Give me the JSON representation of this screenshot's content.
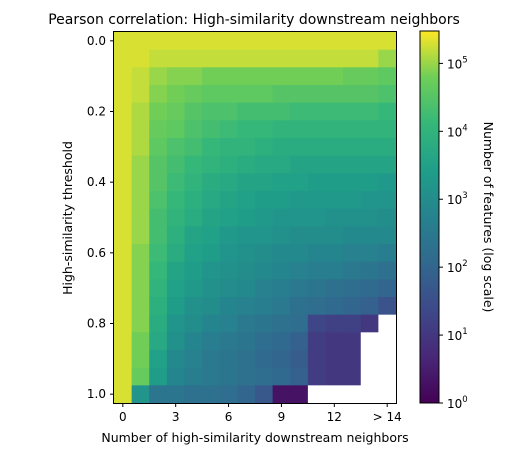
{
  "chart_data": {
    "type": "heatmap",
    "title": "Pearson correlation: High-similarity downstream neighbors",
    "xlabel": "Number of high-similarity downstream neighbors",
    "ylabel": "High-similarity threshold",
    "x_tick_labels": [
      "0",
      "3",
      "6",
      "9",
      "12",
      "> 14"
    ],
    "x_tick_values": [
      0,
      3,
      6,
      9,
      12,
      15
    ],
    "x_categories": [
      0,
      1,
      2,
      3,
      4,
      5,
      6,
      7,
      8,
      9,
      10,
      11,
      12,
      13,
      14,
      "> 14"
    ],
    "y_tick_labels": [
      "0.0",
      "0.2",
      "0.4",
      "0.6",
      "0.8",
      "1.0"
    ],
    "y_tick_values": [
      0.0,
      0.2,
      0.4,
      0.6,
      0.8,
      1.0
    ],
    "y_values": [
      0.0,
      0.05,
      0.1,
      0.15,
      0.2,
      0.25,
      0.3,
      0.35,
      0.4,
      0.45,
      0.5,
      0.55,
      0.6,
      0.65,
      0.7,
      0.75,
      0.8,
      0.85,
      0.9,
      0.95,
      1.0
    ],
    "xlim": [
      -0.5,
      15.5
    ],
    "ylim": [
      1.025,
      -0.025
    ],
    "color_scale": "viridis",
    "log_scale": true,
    "missing_color": "#ffffff",
    "colorbar": {
      "label": "Number of features (log scale)",
      "range": [
        1,
        300000
      ],
      "ticks": [
        {
          "value": 1,
          "base": "10",
          "exp": "0"
        },
        {
          "value": 10,
          "base": "10",
          "exp": "1"
        },
        {
          "value": 100,
          "base": "10",
          "exp": "2"
        },
        {
          "value": 1000,
          "base": "10",
          "exp": "3"
        },
        {
          "value": 10000,
          "base": "10",
          "exp": "4"
        },
        {
          "value": 100000,
          "base": "10",
          "exp": "5"
        }
      ]
    },
    "z_log10": [
      [
        5.3,
        5.3,
        5.3,
        5.3,
        5.3,
        5.3,
        5.3,
        5.3,
        5.3,
        5.3,
        5.3,
        5.3,
        5.3,
        5.3,
        5.3,
        5.3
      ],
      [
        5.3,
        5.3,
        5.2,
        5.2,
        5.2,
        5.2,
        5.2,
        5.2,
        5.2,
        5.2,
        5.2,
        5.2,
        5.2,
        5.2,
        5.2,
        5.0
      ],
      [
        5.3,
        5.2,
        5.0,
        4.9,
        4.9,
        4.8,
        4.8,
        4.8,
        4.8,
        4.8,
        4.8,
        4.8,
        4.8,
        4.7,
        4.7,
        4.6
      ],
      [
        5.3,
        5.2,
        4.9,
        4.8,
        4.7,
        4.6,
        4.6,
        4.6,
        4.6,
        4.5,
        4.5,
        4.5,
        4.5,
        4.5,
        4.5,
        4.4
      ],
      [
        5.3,
        5.1,
        4.8,
        4.7,
        4.5,
        4.4,
        4.4,
        4.3,
        4.3,
        4.3,
        4.2,
        4.2,
        4.2,
        4.2,
        4.2,
        4.1
      ],
      [
        5.3,
        5.1,
        4.7,
        4.6,
        4.4,
        4.3,
        4.2,
        4.1,
        4.1,
        4.0,
        4.0,
        4.0,
        4.0,
        4.0,
        4.0,
        4.0
      ],
      [
        5.3,
        5.1,
        4.6,
        4.4,
        4.3,
        4.1,
        4.0,
        4.0,
        3.9,
        3.8,
        3.8,
        3.8,
        3.8,
        3.8,
        3.8,
        3.8
      ],
      [
        5.3,
        5.0,
        4.5,
        4.3,
        4.1,
        4.0,
        3.9,
        3.8,
        3.7,
        3.7,
        3.6,
        3.6,
        3.6,
        3.6,
        3.6,
        3.6
      ],
      [
        5.3,
        5.0,
        4.5,
        4.2,
        4.0,
        3.8,
        3.7,
        3.6,
        3.6,
        3.5,
        3.5,
        3.4,
        3.4,
        3.4,
        3.4,
        3.3
      ],
      [
        5.3,
        5.0,
        4.4,
        4.1,
        3.9,
        3.7,
        3.6,
        3.5,
        3.4,
        3.4,
        3.3,
        3.3,
        3.3,
        3.3,
        3.2,
        3.2
      ],
      [
        5.3,
        5.0,
        4.3,
        4.0,
        3.8,
        3.6,
        3.5,
        3.4,
        3.3,
        3.2,
        3.2,
        3.2,
        3.1,
        3.1,
        3.1,
        3.0
      ],
      [
        5.3,
        5.0,
        4.3,
        3.9,
        3.6,
        3.5,
        3.3,
        3.2,
        3.2,
        3.1,
        3.0,
        3.0,
        3.0,
        2.9,
        2.9,
        2.9
      ],
      [
        5.3,
        4.9,
        4.2,
        3.8,
        3.5,
        3.4,
        3.2,
        3.1,
        3.0,
        2.9,
        2.9,
        2.8,
        2.8,
        2.7,
        2.7,
        2.6
      ],
      [
        5.3,
        4.9,
        4.1,
        3.6,
        3.4,
        3.2,
        3.1,
        3.0,
        2.9,
        2.8,
        2.7,
        2.6,
        2.6,
        2.5,
        2.4,
        2.3
      ],
      [
        5.3,
        4.9,
        4.0,
        3.5,
        3.3,
        3.1,
        3.0,
        2.9,
        2.7,
        2.6,
        2.5,
        2.4,
        2.3,
        2.2,
        2.1,
        2.0
      ],
      [
        5.3,
        4.9,
        3.9,
        3.4,
        3.1,
        3.0,
        2.8,
        2.7,
        2.6,
        2.5,
        2.3,
        2.2,
        2.1,
        2.0,
        1.9,
        1.6
      ],
      [
        5.3,
        4.9,
        3.8,
        3.2,
        3.0,
        2.8,
        2.7,
        2.5,
        2.4,
        2.3,
        2.2,
        1.3,
        1.2,
        1.2,
        1.0,
        null
      ],
      [
        5.3,
        4.8,
        3.7,
        3.1,
        2.8,
        2.6,
        2.5,
        2.4,
        2.2,
        2.1,
        1.9,
        1.1,
        1.0,
        1.0,
        null,
        null
      ],
      [
        5.3,
        4.8,
        3.5,
        2.9,
        2.7,
        2.5,
        2.4,
        2.3,
        2.1,
        2.0,
        1.8,
        1.1,
        1.0,
        1.0,
        null,
        null
      ],
      [
        5.3,
        4.7,
        3.4,
        2.8,
        2.6,
        2.5,
        2.4,
        2.3,
        2.2,
        2.1,
        1.9,
        1.1,
        1.0,
        1.0,
        null,
        null
      ],
      [
        5.3,
        3.2,
        2.4,
        2.4,
        2.3,
        2.3,
        2.2,
        2.0,
        1.7,
        0.3,
        0.3,
        null,
        null,
        null,
        null,
        null
      ]
    ]
  }
}
